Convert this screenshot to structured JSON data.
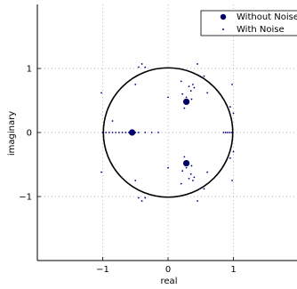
{
  "chart_data": {
    "type": "scatter",
    "title": "",
    "xlabel": "real",
    "ylabel": "imaginary",
    "xlim": [
      -2.0,
      2.0
    ],
    "ylim": [
      -2.0,
      2.0
    ],
    "x_ticks": [
      -1,
      0,
      1
    ],
    "y_ticks": [
      -1,
      0,
      1
    ],
    "x_tick_labels": [
      "−1",
      "0",
      "1"
    ],
    "y_tick_labels": [
      "−1",
      "0",
      "1"
    ],
    "grid": true,
    "grid_style": "dotted",
    "legend_position": "top-right",
    "unit_circle": {
      "center": [
        0,
        0
      ],
      "radius": 1
    },
    "series": [
      {
        "name": "Without Noise",
        "marker": "large-dot",
        "color": "#000066",
        "points": [
          [
            -0.55,
            0.0
          ],
          [
            0.28,
            0.48
          ],
          [
            0.28,
            -0.48
          ]
        ]
      },
      {
        "name": "With Noise",
        "marker": "small-dot",
        "color": "#000080",
        "points": [
          [
            -1.0,
            0.0
          ],
          [
            -0.95,
            0.0
          ],
          [
            -0.9,
            0.0
          ],
          [
            -0.85,
            0.0
          ],
          [
            -0.8,
            0.0
          ],
          [
            -0.75,
            0.0
          ],
          [
            -0.7,
            0.0
          ],
          [
            -0.65,
            0.0
          ],
          [
            -0.6,
            0.0
          ],
          [
            -0.55,
            0.0
          ],
          [
            -0.5,
            0.0
          ],
          [
            -0.45,
            0.0
          ],
          [
            -0.35,
            0.0
          ],
          [
            -0.25,
            0.0
          ],
          [
            -0.15,
            0.0
          ],
          [
            0.85,
            0.0
          ],
          [
            0.88,
            0.0
          ],
          [
            0.91,
            0.0
          ],
          [
            0.94,
            0.0
          ],
          [
            0.97,
            0.0
          ],
          [
            -1.02,
            0.62
          ],
          [
            -1.02,
            -0.62
          ],
          [
            -0.85,
            0.18
          ],
          [
            -0.5,
            0.75
          ],
          [
            -0.45,
            1.02
          ],
          [
            -0.4,
            1.07
          ],
          [
            -0.35,
            1.02
          ],
          [
            -0.5,
            -0.75
          ],
          [
            -0.45,
            -1.02
          ],
          [
            -0.4,
            -1.07
          ],
          [
            -0.35,
            -1.02
          ],
          [
            0.0,
            0.55
          ],
          [
            0.0,
            -0.55
          ],
          [
            0.2,
            0.8
          ],
          [
            0.22,
            0.6
          ],
          [
            0.28,
            0.55
          ],
          [
            0.32,
            0.72
          ],
          [
            0.35,
            0.65
          ],
          [
            0.38,
            0.75
          ],
          [
            0.4,
            0.7
          ],
          [
            0.3,
            0.45
          ],
          [
            0.36,
            0.52
          ],
          [
            0.25,
            0.38
          ],
          [
            0.2,
            -0.8
          ],
          [
            0.22,
            -0.6
          ],
          [
            0.28,
            -0.55
          ],
          [
            0.32,
            -0.72
          ],
          [
            0.35,
            -0.65
          ],
          [
            0.38,
            -0.75
          ],
          [
            0.4,
            -0.7
          ],
          [
            0.3,
            -0.45
          ],
          [
            0.36,
            -0.52
          ],
          [
            0.25,
            -0.38
          ],
          [
            0.45,
            1.07
          ],
          [
            0.55,
            0.88
          ],
          [
            0.45,
            -1.07
          ],
          [
            0.55,
            -0.88
          ],
          [
            0.95,
            0.4
          ],
          [
            0.95,
            -0.4
          ],
          [
            0.98,
            0.75
          ],
          [
            0.98,
            -0.75
          ],
          [
            1.0,
            0.3
          ],
          [
            1.0,
            -0.3
          ],
          [
            0.6,
            0.62
          ],
          [
            0.6,
            -0.62
          ]
        ]
      }
    ]
  }
}
